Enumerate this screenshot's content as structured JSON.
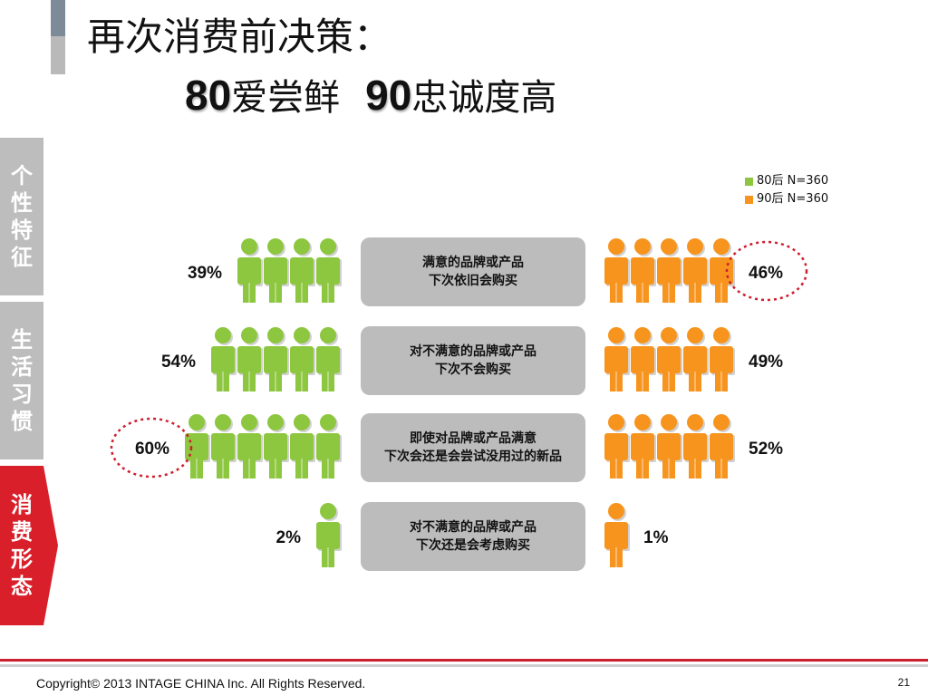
{
  "title": {
    "line1": "再次消费前决策：",
    "line2_num1": "80",
    "line2_text1": "爱尝鲜",
    "line2_num2": "90",
    "line2_text2": "忠诚度高"
  },
  "side_tabs": {
    "personality": [
      "个",
      "性",
      "特",
      "征"
    ],
    "lifestyle": [
      "生",
      "活",
      "习",
      "惯"
    ],
    "consumption": [
      "消",
      "费",
      "形",
      "态"
    ]
  },
  "legend": [
    {
      "label": "80后 N=360",
      "color": "#8dc63f"
    },
    {
      "label": "90后 N=360",
      "color": "#f7941d"
    }
  ],
  "chart_data": {
    "type": "pictograph",
    "series": [
      {
        "name": "80后 N=360",
        "color": "#8dc63f",
        "values": [
          39,
          54,
          60,
          2
        ]
      },
      {
        "name": "90后 N=360",
        "color": "#f7941d",
        "values": [
          46,
          49,
          52,
          1
        ]
      }
    ],
    "value_labels": {
      "80后 N=360": [
        "39%",
        "54%",
        "60%",
        "2%"
      ],
      "90后 N=360": [
        "46%",
        "49%",
        "52%",
        "1%"
      ]
    },
    "categories": [
      {
        "line1": "满意的品牌或产品",
        "line2": "下次依旧会购买"
      },
      {
        "line1": "对不满意的品牌或产品",
        "line2": "下次不会购买"
      },
      {
        "line1": "即使对品牌或产品满意",
        "line2": "下次会还是会尝试没用过的新品"
      },
      {
        "line1": "对不满意的品牌或产品",
        "line2": "下次还是会考虑购买"
      }
    ],
    "icon_counts": {
      "80后 N=360": [
        4,
        5,
        6,
        1
      ],
      "90后 N=360": [
        5,
        5,
        5,
        1
      ]
    },
    "highlighted": {
      "80后 N=360": [
        2
      ],
      "90后 N=360": [
        0
      ]
    }
  },
  "footer": {
    "copyright": "Copyright© 2013 INTAGE CHINA Inc. All Rights Reserved.",
    "page": "21"
  }
}
